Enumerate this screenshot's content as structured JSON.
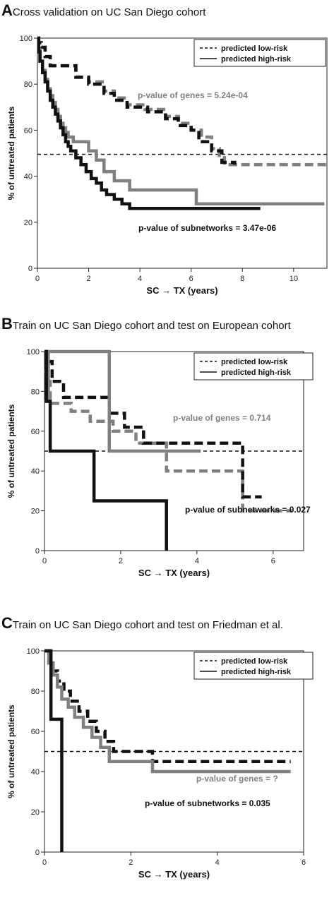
{
  "chart_data": [
    {
      "type": "line",
      "panel_letter": "A",
      "title": "Cross validation on UC San Diego cohort",
      "xlabel": "SC → TX (years)",
      "ylabel": "% of untreated patients",
      "xlim": [
        0,
        11.3
      ],
      "ylim": [
        0,
        100
      ],
      "xticks": [
        0,
        2,
        4,
        6,
        8,
        10
      ],
      "yticks": [
        0,
        20,
        40,
        60,
        80,
        100
      ],
      "legend": {
        "placement": "top-right",
        "entries": [
          "predicted low-risk",
          "predicted high-risk"
        ]
      },
      "reference_line_y": 49.5,
      "annotations": [
        {
          "text": "p-value of genes = 5.24e-04",
          "color": "#808080"
        },
        {
          "text": "p-value of subnetworks = 3.47e-06",
          "color": "#111111"
        }
      ],
      "series": [
        {
          "style": "dashed",
          "color": "#808080",
          "x": [
            0,
            0.05,
            0.15,
            0.3,
            0.5,
            1.0,
            1.5,
            2.0,
            2.6,
            3.0,
            3.5,
            4.2,
            5.0,
            5.5,
            6.0,
            6.4,
            6.8,
            7.1,
            7.3,
            11.2
          ],
          "y": [
            100,
            98,
            96,
            92,
            88,
            88,
            83,
            81,
            77,
            74,
            71,
            69,
            66,
            63,
            60,
            57,
            52,
            49,
            45,
            44
          ]
        },
        {
          "style": "dashed",
          "color": "#111111",
          "x": [
            0,
            0.05,
            0.15,
            0.3,
            0.5,
            1.0,
            1.5,
            2.0,
            2.6,
            3.0,
            3.5,
            4.3,
            5.0,
            5.5,
            6.0,
            6.3,
            6.8,
            7.2,
            7.7
          ],
          "y": [
            100,
            98,
            96,
            92,
            88,
            88,
            83,
            80,
            76,
            73,
            70,
            68,
            65,
            62,
            60,
            55,
            51,
            46,
            45
          ]
        },
        {
          "style": "solid",
          "color": "#808080",
          "x": [
            0,
            0.05,
            0.1,
            0.2,
            0.3,
            0.4,
            0.5,
            0.6,
            0.7,
            0.8,
            0.9,
            1.0,
            1.1,
            1.2,
            1.4,
            1.6,
            2.0,
            2.3,
            2.6,
            3.0,
            3.6,
            6.2,
            11.2
          ],
          "y": [
            100,
            95,
            90,
            86,
            82,
            78,
            75,
            72,
            69,
            66,
            63,
            61,
            59,
            57,
            55,
            55,
            51,
            47,
            42,
            38,
            34,
            28,
            28
          ]
        },
        {
          "style": "solid",
          "color": "#111111",
          "x": [
            0,
            0.05,
            0.1,
            0.2,
            0.3,
            0.4,
            0.5,
            0.6,
            0.7,
            0.8,
            0.9,
            1.0,
            1.1,
            1.2,
            1.3,
            1.5,
            1.7,
            1.9,
            2.1,
            2.3,
            2.5,
            2.7,
            3.0,
            3.3,
            3.6,
            8.7
          ],
          "y": [
            100,
            94,
            90,
            85,
            81,
            77,
            73,
            70,
            67,
            64,
            61,
            58,
            55,
            53,
            51,
            48,
            45,
            42,
            39,
            37,
            34,
            32,
            30,
            28,
            26,
            26
          ]
        }
      ]
    },
    {
      "type": "line",
      "panel_letter": "B",
      "title": "Train on UC San Diego cohort and test on European cohort",
      "xlabel": "SC → TX (years)",
      "ylabel": "% of untreated patients",
      "xlim": [
        0,
        6.8
      ],
      "ylim": [
        0,
        100
      ],
      "xticks": [
        0,
        2,
        4,
        6
      ],
      "yticks": [
        0,
        20,
        40,
        60,
        80,
        100
      ],
      "legend": {
        "placement": "top-right",
        "entries": [
          "predicted low-risk",
          "predicted high-risk"
        ]
      },
      "reference_line_y": 50,
      "annotations": [
        {
          "text": "p-value of genes = 0.714",
          "color": "#808080"
        },
        {
          "text": "p-value of subnetworks = 0.027",
          "color": "#111111"
        }
      ],
      "series": [
        {
          "style": "dashed",
          "color": "#808080",
          "x": [
            0,
            0.05,
            0.15,
            0.7,
            1.2,
            1.8,
            2.4,
            3.2,
            5.2,
            5.5,
            6.5
          ],
          "y": [
            90,
            85,
            74,
            70,
            65,
            60,
            54,
            40,
            20,
            20,
            20
          ]
        },
        {
          "style": "dashed",
          "color": "#111111",
          "x": [
            0,
            0.05,
            0.2,
            0.5,
            0.8,
            1.7,
            2.1,
            2.6,
            3.2,
            5.2,
            5.7
          ],
          "y": [
            100,
            95,
            85,
            77,
            77,
            69,
            62,
            54,
            54,
            27,
            27
          ]
        },
        {
          "style": "solid",
          "color": "#808080",
          "x": [
            0,
            0.1,
            1.7,
            4.1
          ],
          "y": [
            75,
            100,
            50,
            50
          ]
        },
        {
          "style": "solid",
          "color": "#111111",
          "x": [
            0,
            0.05,
            0.15,
            1.3,
            3.2,
            3.2
          ],
          "y": [
            100,
            75,
            50,
            25,
            0,
            0
          ]
        }
      ]
    },
    {
      "type": "line",
      "panel_letter": "C",
      "title": "Train on UC San Diego cohort and test on Friedman et al.",
      "xlabel": "SC → TX (years)",
      "ylabel": "% of untreated patients",
      "xlim": [
        0,
        6
      ],
      "ylim": [
        0,
        100
      ],
      "xticks": [
        0,
        2,
        4,
        6
      ],
      "yticks": [
        0,
        20,
        40,
        60,
        80,
        100
      ],
      "legend": {
        "placement": "top-right",
        "entries": [
          "predicted low-risk",
          "predicted high-risk"
        ]
      },
      "reference_line_y": 50,
      "annotations": [
        {
          "text": "p-value of genes = ?",
          "color": "#808080"
        },
        {
          "text": "p-value of subnetworks = 0.035",
          "color": "#111111"
        }
      ],
      "series": [
        {
          "style": "dashed",
          "color": "#111111",
          "x": [
            0,
            0.1,
            0.2,
            0.3,
            0.45,
            0.6,
            0.8,
            1.0,
            1.2,
            1.4,
            1.6,
            2.5,
            5.7
          ],
          "y": [
            100,
            94,
            90,
            85,
            80,
            75,
            70,
            65,
            60,
            55,
            50,
            45,
            45
          ]
        },
        {
          "style": "solid",
          "color": "#808080",
          "x": [
            0,
            0.1,
            0.2,
            0.3,
            0.4,
            0.55,
            0.7,
            0.9,
            1.1,
            1.3,
            1.5,
            2.5,
            5.7
          ],
          "y": [
            100,
            94,
            88,
            82,
            76,
            72,
            67,
            62,
            57,
            52,
            45,
            40,
            40
          ]
        },
        {
          "style": "solid",
          "color": "#111111",
          "x": [
            0,
            0.1,
            0.15,
            0.4,
            0.4
          ],
          "y": [
            100,
            100,
            66,
            66,
            0
          ]
        }
      ]
    }
  ]
}
